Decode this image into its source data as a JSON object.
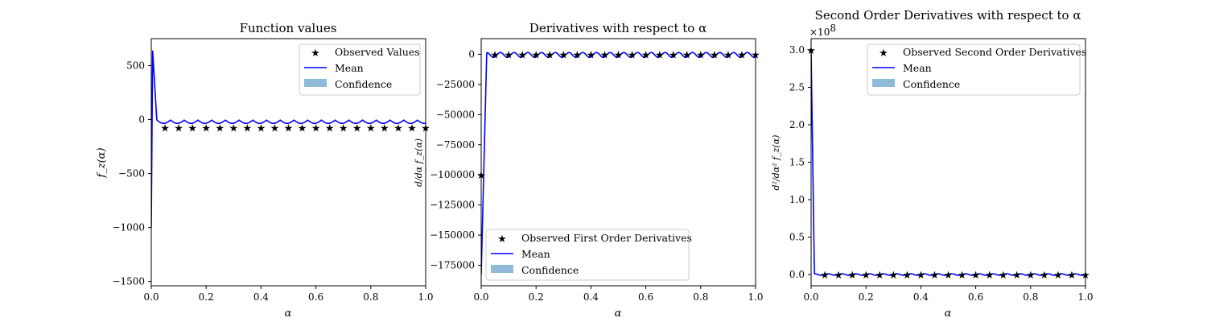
{
  "chart_data": [
    {
      "type": "line",
      "title": "Function values",
      "xlabel": "α",
      "ylabel": "f_z(α)",
      "xlim": [
        0,
        1
      ],
      "ylim": [
        -1540,
        750
      ],
      "xticks": [
        0.0,
        0.2,
        0.4,
        0.6,
        0.8,
        1.0
      ],
      "xtick_labels": [
        "0.0",
        "0.2",
        "0.4",
        "0.6",
        "0.8",
        "1.0"
      ],
      "yticks": [
        500,
        0,
        -500,
        -1000,
        -1500
      ],
      "ytick_labels": [
        "500",
        "0",
        "−500",
        "−1000",
        "−1500"
      ],
      "legend_position": "upper right",
      "legend": [
        "Observed Values",
        "Mean",
        "Confidence"
      ],
      "observed": {
        "x": [
          0.05,
          0.1,
          0.15,
          0.2,
          0.25,
          0.3,
          0.35,
          0.4,
          0.45,
          0.5,
          0.55,
          0.6,
          0.65,
          0.7,
          0.75,
          0.8,
          0.85,
          0.9,
          0.95,
          1.0
        ],
        "y": [
          -75,
          -75,
          -75,
          -75,
          -75,
          -75,
          -75,
          -75,
          -75,
          -75,
          -75,
          -75,
          -75,
          -75,
          -75,
          -75,
          -75,
          -75,
          -75,
          -75
        ]
      },
      "mean_kind": "func"
    },
    {
      "type": "line",
      "title": "Derivatives with respect to α",
      "xlabel": "α",
      "ylabel": "d/dα f_z(α)",
      "xlim": [
        0,
        1
      ],
      "ylim": [
        -192000,
        13000
      ],
      "xticks": [
        0.0,
        0.2,
        0.4,
        0.6,
        0.8,
        1.0
      ],
      "xtick_labels": [
        "0.0",
        "0.2",
        "0.4",
        "0.6",
        "0.8",
        "1.0"
      ],
      "yticks": [
        0,
        -25000,
        -50000,
        -75000,
        -100000,
        -125000,
        -150000,
        -175000
      ],
      "ytick_labels": [
        "0",
        "−25000",
        "−50000",
        "−75000",
        "−100000",
        "−125000",
        "−150000",
        "−175000"
      ],
      "legend_position": "lower left",
      "legend": [
        "Observed First Order Derivatives",
        "Mean",
        "Confidence"
      ],
      "observed": {
        "x": [
          0.0,
          0.05,
          0.1,
          0.15,
          0.2,
          0.25,
          0.3,
          0.35,
          0.4,
          0.45,
          0.5,
          0.55,
          0.6,
          0.65,
          0.7,
          0.75,
          0.8,
          0.85,
          0.9,
          0.95,
          1.0
        ],
        "y": [
          -100000,
          0,
          0,
          0,
          0,
          0,
          0,
          0,
          0,
          0,
          0,
          0,
          0,
          0,
          0,
          0,
          0,
          0,
          0,
          0,
          0
        ]
      },
      "mean_kind": "deriv"
    },
    {
      "type": "line",
      "title": "Second Order Derivatives with respect to α",
      "xlabel": "α",
      "ylabel": "d²/dα² f_z(α)",
      "y_multiplier": "×10",
      "y_multiplier_exp": "8",
      "xlim": [
        0,
        1
      ],
      "ylim": [
        -0.15,
        3.15
      ],
      "xticks": [
        0.0,
        0.2,
        0.4,
        0.6,
        0.8,
        1.0
      ],
      "xtick_labels": [
        "0.0",
        "0.2",
        "0.4",
        "0.6",
        "0.8",
        "1.0"
      ],
      "yticks": [
        3.0,
        2.5,
        2.0,
        1.5,
        1.0,
        0.5,
        0.0
      ],
      "ytick_labels": [
        "3.0",
        "2.5",
        "2.0",
        "1.5",
        "1.0",
        "0.5",
        "0.0"
      ],
      "legend_position": "upper right",
      "legend": [
        "Observed Second Order Derivatives",
        "Mean",
        "Confidence"
      ],
      "observed": {
        "x": [
          0.0,
          0.05,
          0.1,
          0.15,
          0.2,
          0.25,
          0.3,
          0.35,
          0.4,
          0.45,
          0.5,
          0.55,
          0.6,
          0.65,
          0.7,
          0.75,
          0.8,
          0.85,
          0.9,
          0.95,
          1.0
        ],
        "y": [
          3.0,
          0,
          0,
          0,
          0,
          0,
          0,
          0,
          0,
          0,
          0,
          0,
          0,
          0,
          0,
          0,
          0,
          0,
          0,
          0,
          0
        ]
      },
      "mean_kind": "second"
    }
  ],
  "colors": {
    "mean": "#0000ff",
    "confidence": "#8fbbd9",
    "observed": "#000000"
  }
}
